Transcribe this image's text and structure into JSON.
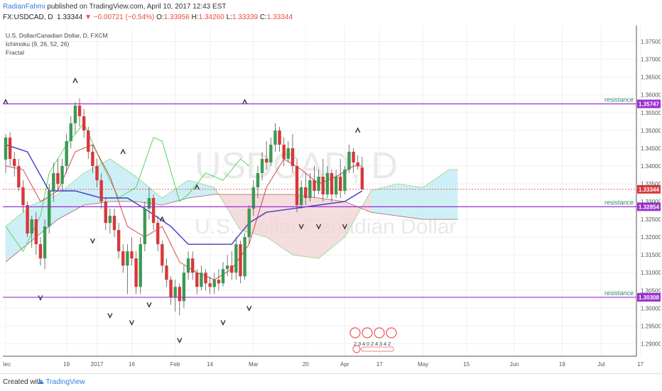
{
  "header": {
    "publisher": "RadianFahmi",
    "published_text": "published on TradingView.com, April 10, 2017 12:43 EST",
    "symbol": "FX:USDCAD, D",
    "last": "1.33344",
    "change": "▼ −0.00721 (−0.54%)",
    "open_label": "O:",
    "open": "1.33956",
    "high_label": "H:",
    "high": "1.34260",
    "low_label": "L:",
    "low": "1.33339",
    "close_label": "C:",
    "close": "1.33344"
  },
  "legend": {
    "title": "U.S. Dollar/Canadian Dollar, D, FXCM",
    "ichimoku": "Ichimoku (9, 26, 52, 26)",
    "fractal": "Fractal"
  },
  "watermark": {
    "ticker": "USDCAD, D",
    "name": "U.S. Dollar/Canadian Dollar"
  },
  "footer": {
    "created_with": "Created with",
    "brand": "TradingView"
  },
  "colors": {
    "up": "#3a9a52",
    "down": "#d8383a",
    "tenkan": "#d24b4b",
    "kijun": "#3c3cc8",
    "chikou": "#55d855",
    "cloud_bull": "#bde9f3",
    "cloud_bear": "#f1d0d3",
    "resistance": "#9b2fd0",
    "price_line": "#e84b3c",
    "fractal": "#333333"
  },
  "chart_data": {
    "type": "candlestick",
    "y_axis": {
      "range": [
        1.2865,
        1.3795
      ],
      "ticks": [
        "1.37500",
        "1.37000",
        "1.36500",
        "1.36000",
        "1.35500",
        "1.35000",
        "1.34500",
        "1.34000",
        "1.33500",
        "1.33000",
        "1.32500",
        "1.32000",
        "1.31500",
        "1.31000",
        "1.30500",
        "1.30000",
        "1.29500",
        "1.29000"
      ]
    },
    "x_axis": {
      "ticks": [
        {
          "label": "Dec",
          "bar": 0
        },
        {
          "label": "19",
          "bar": 14
        },
        {
          "label": "2017",
          "bar": 21
        },
        {
          "label": "16",
          "bar": 29
        },
        {
          "label": "Feb",
          "bar": 39
        },
        {
          "label": "14",
          "bar": 47
        },
        {
          "label": "Mar",
          "bar": 57
        },
        {
          "label": "20",
          "bar": 69
        },
        {
          "label": "Apr",
          "bar": 78
        },
        {
          "label": "17",
          "bar": 86
        },
        {
          "label": "May",
          "bar": 96
        },
        {
          "label": "15",
          "bar": 106
        },
        {
          "label": "Jun",
          "bar": 117
        },
        {
          "label": "19",
          "bar": 128
        },
        {
          "label": "Jul",
          "bar": 137
        },
        {
          "label": "17",
          "bar": 146
        }
      ]
    },
    "candles": [
      [
        1.3418,
        1.349,
        1.338,
        1.348
      ],
      [
        1.348,
        1.3495,
        1.34,
        1.342
      ],
      [
        1.342,
        1.344,
        1.337,
        1.34
      ],
      [
        1.34,
        1.342,
        1.333,
        1.334
      ],
      [
        1.334,
        1.336,
        1.327,
        1.329
      ],
      [
        1.329,
        1.33,
        1.32,
        1.321
      ],
      [
        1.321,
        1.326,
        1.317,
        1.325
      ],
      [
        1.325,
        1.327,
        1.315,
        1.318
      ],
      [
        1.318,
        1.32,
        1.312,
        1.314
      ],
      [
        1.314,
        1.325,
        1.311,
        1.323
      ],
      [
        1.323,
        1.335,
        1.321,
        1.333
      ],
      [
        1.333,
        1.341,
        1.33,
        1.338
      ],
      [
        1.338,
        1.342,
        1.333,
        1.335
      ],
      [
        1.335,
        1.342,
        1.333,
        1.34
      ],
      [
        1.34,
        1.349,
        1.338,
        1.347
      ],
      [
        1.347,
        1.354,
        1.345,
        1.352
      ],
      [
        1.352,
        1.358,
        1.349,
        1.357
      ],
      [
        1.357,
        1.359,
        1.351,
        1.354
      ],
      [
        1.354,
        1.356,
        1.348,
        1.35
      ],
      [
        1.35,
        1.351,
        1.342,
        1.344
      ],
      [
        1.344,
        1.346,
        1.338,
        1.34
      ],
      [
        1.34,
        1.342,
        1.334,
        1.336
      ],
      [
        1.336,
        1.338,
        1.328,
        1.33
      ],
      [
        1.33,
        1.331,
        1.322,
        1.324
      ],
      [
        1.324,
        1.328,
        1.321,
        1.326
      ],
      [
        1.326,
        1.328,
        1.32,
        1.322
      ],
      [
        1.322,
        1.324,
        1.314,
        1.316
      ],
      [
        1.316,
        1.318,
        1.31,
        1.312
      ],
      [
        1.312,
        1.318,
        1.304,
        1.316
      ],
      [
        1.316,
        1.32,
        1.312,
        1.314
      ],
      [
        1.314,
        1.316,
        1.304,
        1.306
      ],
      [
        1.306,
        1.32,
        1.304,
        1.318
      ],
      [
        1.318,
        1.33,
        1.316,
        1.328
      ],
      [
        1.328,
        1.334,
        1.325,
        1.331
      ],
      [
        1.331,
        1.332,
        1.322,
        1.324
      ],
      [
        1.324,
        1.326,
        1.316,
        1.318
      ],
      [
        1.318,
        1.319,
        1.31,
        1.312
      ],
      [
        1.312,
        1.314,
        1.306,
        1.308
      ],
      [
        1.308,
        1.309,
        1.301,
        1.303
      ],
      [
        1.303,
        1.308,
        1.299,
        1.306
      ],
      [
        1.306,
        1.307,
        1.298,
        1.302
      ],
      [
        1.302,
        1.312,
        1.3,
        1.31
      ],
      [
        1.31,
        1.316,
        1.308,
        1.314
      ],
      [
        1.314,
        1.316,
        1.308,
        1.31
      ],
      [
        1.31,
        1.311,
        1.304,
        1.306
      ],
      [
        1.306,
        1.312,
        1.305,
        1.31
      ],
      [
        1.31,
        1.311,
        1.305,
        1.307
      ],
      [
        1.307,
        1.309,
        1.304,
        1.306
      ],
      [
        1.306,
        1.31,
        1.304,
        1.308
      ],
      [
        1.308,
        1.311,
        1.305,
        1.307
      ],
      [
        1.307,
        1.313,
        1.306,
        1.311
      ],
      [
        1.311,
        1.315,
        1.309,
        1.312
      ],
      [
        1.312,
        1.316,
        1.308,
        1.31
      ],
      [
        1.31,
        1.32,
        1.308,
        1.318
      ],
      [
        1.318,
        1.319,
        1.307,
        1.309
      ],
      [
        1.309,
        1.321,
        1.308,
        1.32
      ],
      [
        1.32,
        1.329,
        1.318,
        1.328
      ],
      [
        1.328,
        1.336,
        1.326,
        1.334
      ],
      [
        1.334,
        1.34,
        1.331,
        1.338
      ],
      [
        1.338,
        1.344,
        1.336,
        1.342
      ],
      [
        1.342,
        1.347,
        1.339,
        1.341
      ],
      [
        1.341,
        1.348,
        1.34,
        1.346
      ],
      [
        1.346,
        1.352,
        1.344,
        1.35
      ],
      [
        1.35,
        1.351,
        1.344,
        1.346
      ],
      [
        1.346,
        1.348,
        1.34,
        1.342
      ],
      [
        1.342,
        1.347,
        1.341,
        1.345
      ],
      [
        1.345,
        1.349,
        1.338,
        1.34
      ],
      [
        1.34,
        1.342,
        1.327,
        1.329
      ],
      [
        1.329,
        1.336,
        1.328,
        1.334
      ],
      [
        1.334,
        1.338,
        1.329,
        1.331
      ],
      [
        1.331,
        1.338,
        1.33,
        1.336
      ],
      [
        1.336,
        1.34,
        1.331,
        1.333
      ],
      [
        1.333,
        1.339,
        1.332,
        1.337
      ],
      [
        1.337,
        1.342,
        1.33,
        1.332
      ],
      [
        1.332,
        1.34,
        1.331,
        1.338
      ],
      [
        1.338,
        1.339,
        1.33,
        1.332
      ],
      [
        1.332,
        1.339,
        1.331,
        1.337
      ],
      [
        1.337,
        1.342,
        1.331,
        1.333
      ],
      [
        1.333,
        1.34,
        1.332,
        1.339
      ],
      [
        1.339,
        1.346,
        1.338,
        1.344
      ],
      [
        1.344,
        1.345,
        1.338,
        1.341
      ],
      [
        1.341,
        1.343,
        1.339,
        1.34
      ],
      [
        1.3396,
        1.3426,
        1.3334,
        1.3334
      ]
    ],
    "tenkan": [
      [
        0,
        1.34
      ],
      [
        4,
        1.339
      ],
      [
        8,
        1.33
      ],
      [
        12,
        1.333
      ],
      [
        16,
        1.344
      ],
      [
        20,
        1.346
      ],
      [
        24,
        1.337
      ],
      [
        28,
        1.323
      ],
      [
        32,
        1.32
      ],
      [
        36,
        1.323
      ],
      [
        40,
        1.313
      ],
      [
        44,
        1.31
      ],
      [
        48,
        1.308
      ],
      [
        52,
        1.311
      ],
      [
        56,
        1.318
      ],
      [
        60,
        1.334
      ],
      [
        64,
        1.342
      ],
      [
        68,
        1.339
      ],
      [
        72,
        1.335
      ],
      [
        76,
        1.337
      ],
      [
        80,
        1.34
      ],
      [
        82,
        1.34
      ]
    ],
    "kijun": [
      [
        0,
        1.346
      ],
      [
        5,
        1.344
      ],
      [
        10,
        1.333
      ],
      [
        16,
        1.333
      ],
      [
        22,
        1.331
      ],
      [
        28,
        1.331
      ],
      [
        32,
        1.328
      ],
      [
        38,
        1.323
      ],
      [
        42,
        1.318
      ],
      [
        52,
        1.318
      ],
      [
        56,
        1.324
      ],
      [
        60,
        1.327
      ],
      [
        66,
        1.328
      ],
      [
        72,
        1.329
      ],
      [
        78,
        1.33
      ],
      [
        82,
        1.333
      ]
    ],
    "chikou": [
      [
        0,
        1.323
      ],
      [
        4,
        1.316
      ],
      [
        8,
        1.326
      ],
      [
        10,
        1.338
      ],
      [
        14,
        1.346
      ],
      [
        18,
        1.352
      ],
      [
        22,
        1.341
      ],
      [
        26,
        1.331
      ],
      [
        30,
        1.334
      ],
      [
        34,
        1.348
      ],
      [
        36,
        1.347
      ],
      [
        40,
        1.33
      ],
      [
        42,
        1.332
      ],
      [
        46,
        1.338
      ],
      [
        50,
        1.336
      ],
      [
        54,
        1.342
      ],
      [
        56,
        1.34
      ]
    ],
    "cloud": {
      "span_a": [
        [
          0,
          1.323
        ],
        [
          6,
          1.329
        ],
        [
          12,
          1.332
        ],
        [
          18,
          1.338
        ],
        [
          24,
          1.342
        ],
        [
          30,
          1.337
        ],
        [
          36,
          1.331
        ],
        [
          42,
          1.336
        ],
        [
          48,
          1.334
        ],
        [
          54,
          1.322
        ],
        [
          60,
          1.32
        ],
        [
          66,
          1.315
        ],
        [
          72,
          1.314
        ],
        [
          78,
          1.32
        ],
        [
          84,
          1.333
        ],
        [
          90,
          1.335
        ],
        [
          96,
          1.334
        ],
        [
          102,
          1.339
        ],
        [
          104,
          1.339
        ]
      ],
      "span_b": [
        [
          0,
          1.313
        ],
        [
          6,
          1.319
        ],
        [
          12,
          1.325
        ],
        [
          18,
          1.329
        ],
        [
          24,
          1.33
        ],
        [
          30,
          1.33
        ],
        [
          36,
          1.329
        ],
        [
          42,
          1.331
        ],
        [
          48,
          1.332
        ],
        [
          54,
          1.332
        ],
        [
          60,
          1.332
        ],
        [
          66,
          1.332
        ],
        [
          72,
          1.331
        ],
        [
          78,
          1.33
        ],
        [
          84,
          1.327
        ],
        [
          90,
          1.326
        ],
        [
          96,
          1.325
        ],
        [
          102,
          1.325
        ],
        [
          104,
          1.325
        ]
      ]
    },
    "fractals": [
      {
        "bar": 0,
        "type": "up",
        "price": 1.358
      },
      {
        "bar": 16,
        "type": "up",
        "price": 1.364
      },
      {
        "bar": 27,
        "type": "up",
        "price": 1.344
      },
      {
        "bar": 55,
        "type": "up",
        "price": 1.358
      },
      {
        "bar": 81,
        "type": "up",
        "price": 1.35
      },
      {
        "bar": 44,
        "type": "up",
        "price": 1.334
      },
      {
        "bar": 36,
        "type": "up",
        "price": 1.325
      },
      {
        "bar": 8,
        "type": "down",
        "price": 1.303
      },
      {
        "bar": 20,
        "type": "down",
        "price": 1.319
      },
      {
        "bar": 24,
        "type": "down",
        "price": 1.298
      },
      {
        "bar": 29,
        "type": "down",
        "price": 1.296
      },
      {
        "bar": 33,
        "type": "down",
        "price": 1.301
      },
      {
        "bar": 40,
        "type": "down",
        "price": 1.291
      },
      {
        "bar": 50,
        "type": "down",
        "price": 1.296
      },
      {
        "bar": 56,
        "type": "down",
        "price": 1.3
      },
      {
        "bar": 68,
        "type": "down",
        "price": 1.323
      },
      {
        "bar": 72,
        "type": "down",
        "price": 1.323
      },
      {
        "bar": 78,
        "type": "down",
        "price": 1.323
      }
    ],
    "last_price": 1.33344,
    "resistance_levels": [
      {
        "label": "resistance",
        "value": "1.35747",
        "price": 1.35747
      },
      {
        "label": "resistance",
        "value": "1.32854",
        "price": 1.32854
      },
      {
        "label": "resistance",
        "value": "1.30308",
        "price": 1.30308
      }
    ],
    "price_tag": "1.33344",
    "events": [
      "2",
      "3",
      "4",
      "0",
      "2",
      "4",
      "3",
      "4",
      "2"
    ]
  }
}
